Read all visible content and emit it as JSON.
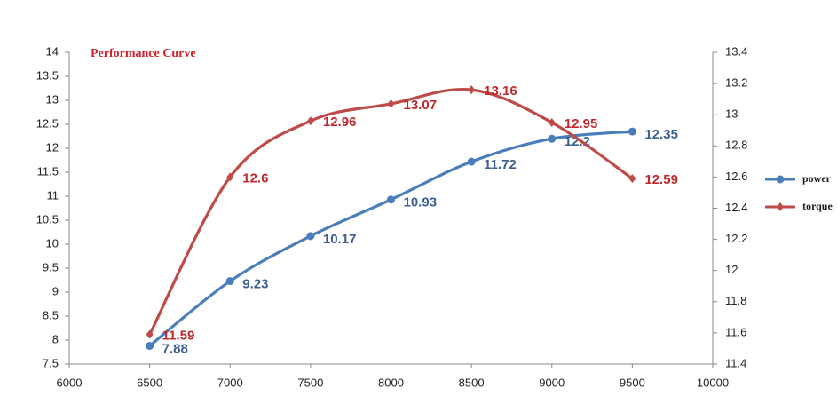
{
  "chart_data": {
    "type": "line",
    "title": "Performance Curve",
    "x": [
      6500,
      7000,
      7500,
      8000,
      8500,
      9000,
      9500
    ],
    "series": [
      {
        "name": "power",
        "color": "#4a7ebb",
        "label_color": "#3b5f8f",
        "marker": "circle",
        "values": [
          7.88,
          9.23,
          10.17,
          10.93,
          11.72,
          12.2,
          12.35
        ]
      },
      {
        "name": "torque",
        "color": "#be4b48",
        "label_color": "#c0282b",
        "marker": "diamond",
        "axis": "y2",
        "values": [
          11.59,
          12.6,
          12.96,
          13.07,
          13.16,
          12.95,
          12.59
        ]
      }
    ],
    "xlim": [
      6000,
      10000
    ],
    "xticks": [
      6000,
      6500,
      7000,
      7500,
      8000,
      8500,
      9000,
      9500,
      10000
    ],
    "ylim": [
      7.5,
      14
    ],
    "yticks": [
      7.5,
      8,
      8.5,
      9,
      9.5,
      10,
      10.5,
      11,
      11.5,
      12,
      12.5,
      13,
      13.5,
      14
    ],
    "y2lim": [
      11.4,
      13.4
    ],
    "y2ticks": [
      11.4,
      11.6,
      11.8,
      12,
      12.2,
      12.4,
      12.6,
      12.8,
      13,
      13.2,
      13.4
    ],
    "grid": false,
    "smooth": true,
    "legend": "right"
  }
}
